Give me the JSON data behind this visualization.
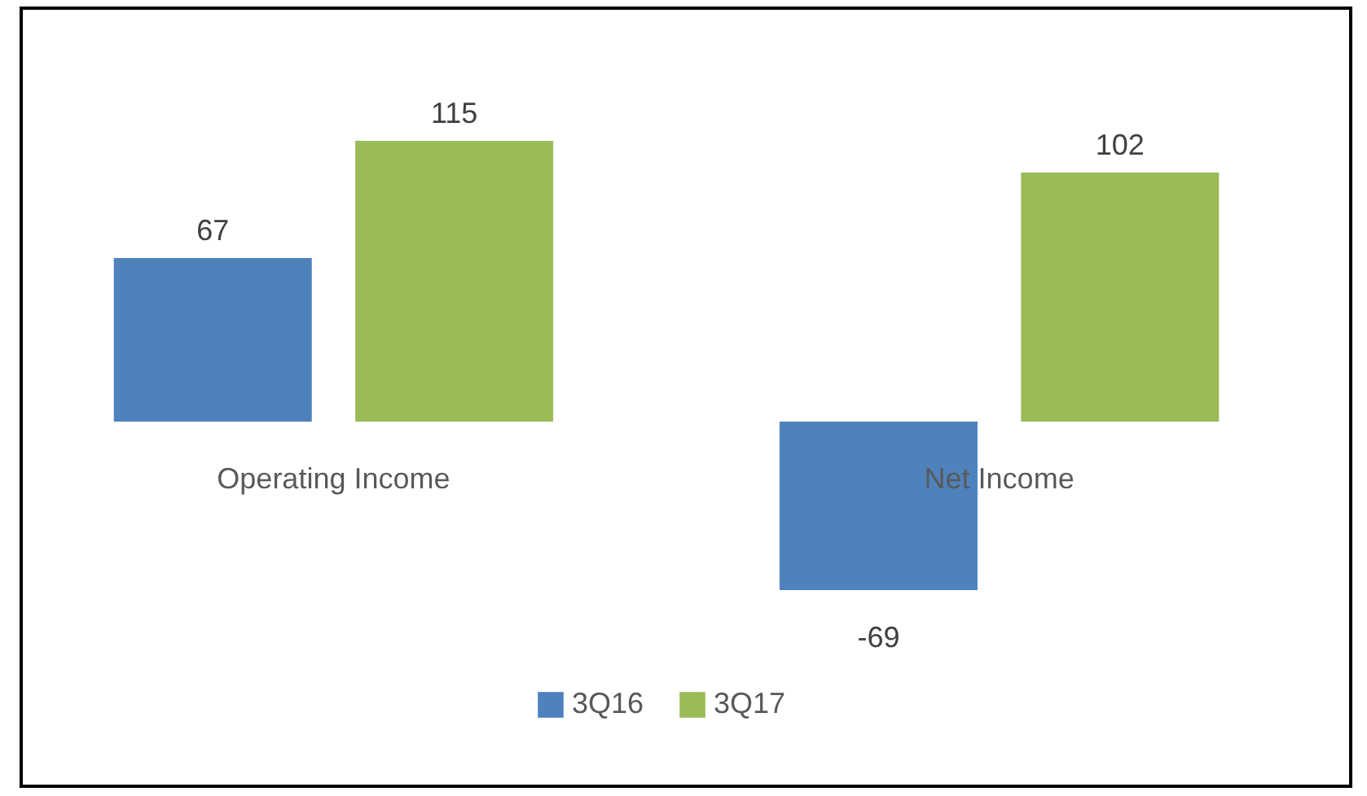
{
  "chart_data": {
    "type": "bar",
    "categories": [
      "Operating Income",
      "Net Income"
    ],
    "series": [
      {
        "name": "3Q16",
        "color": "#4f81bd",
        "values": [
          67,
          -69
        ]
      },
      {
        "name": "3Q17",
        "color": "#9bbb59",
        "values": [
          115,
          102
        ]
      }
    ],
    "data_labels": true,
    "legend": "bottom"
  }
}
